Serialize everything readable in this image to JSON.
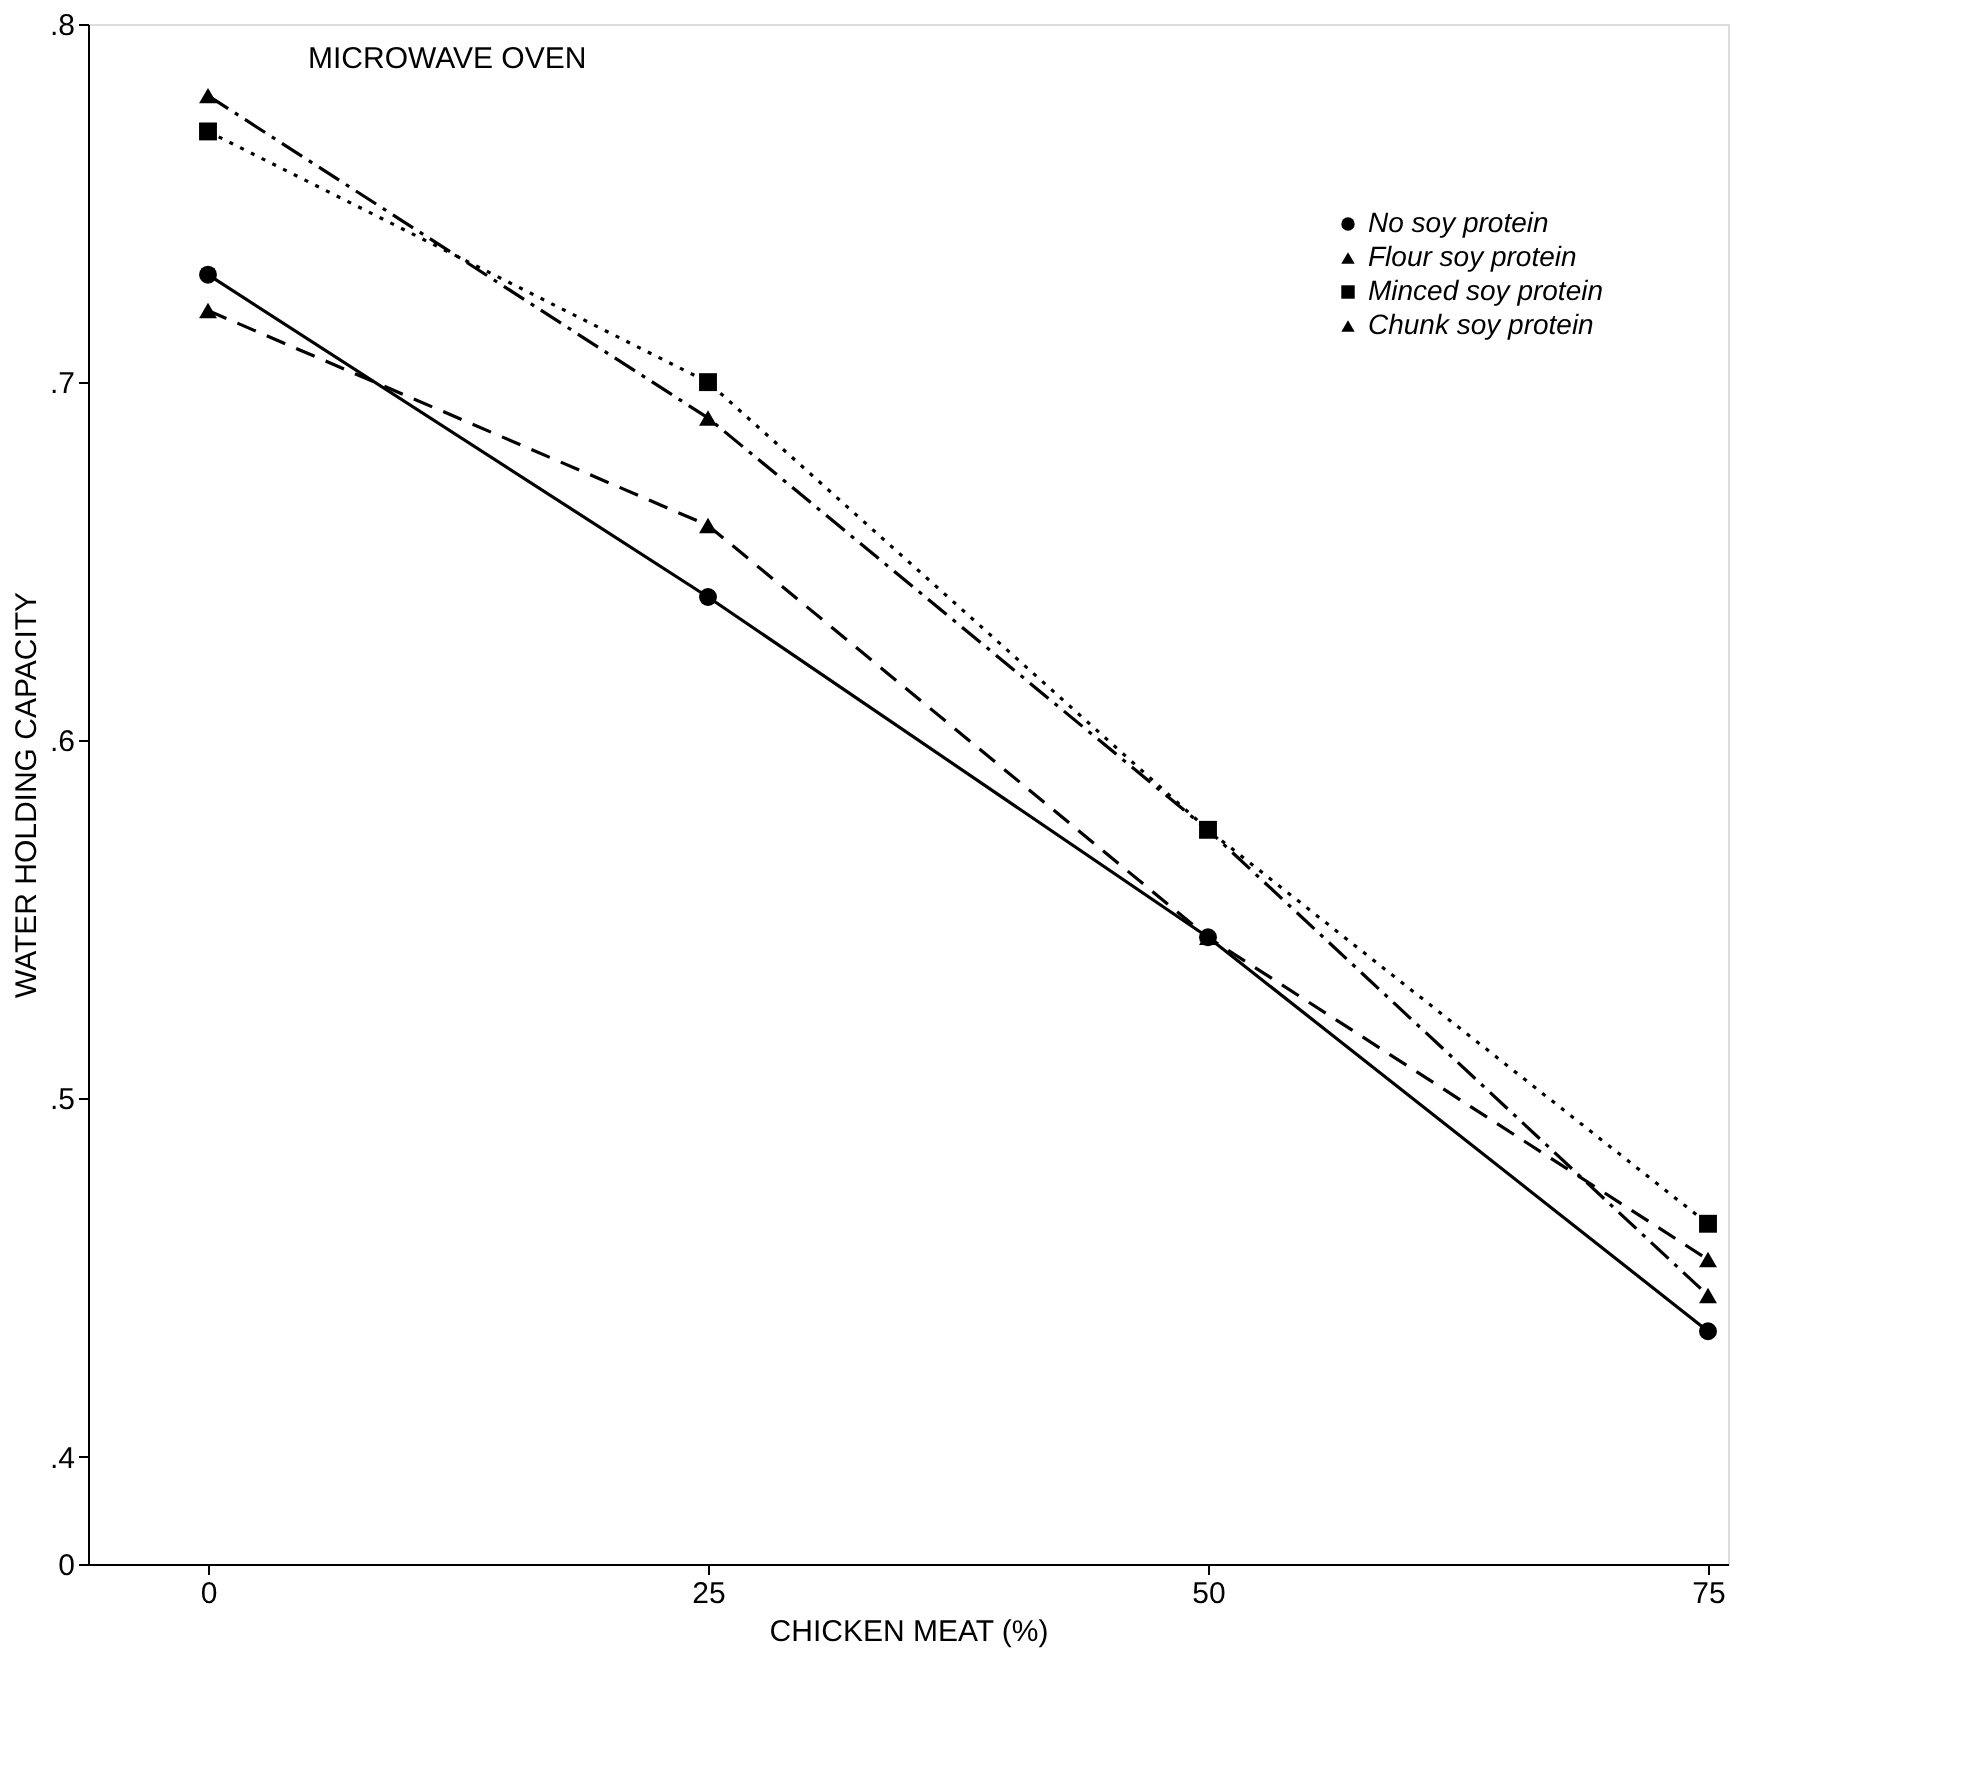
{
  "chart_data": {
    "type": "line",
    "title": "MICROWAVE OVEN",
    "xlabel": "CHICKEN MEAT (%)",
    "ylabel": "WATER HOLDING CAPACITY",
    "x": [
      0,
      25,
      50,
      75
    ],
    "series": [
      {
        "name": "No soy protein",
        "color": "#000000",
        "values": [
          0.73,
          0.64,
          0.545,
          0.435
        ],
        "marker": "circle",
        "line_style": "solid"
      },
      {
        "name": "Flour soy protein",
        "color": "#000000",
        "values": [
          0.78,
          0.69,
          0.575,
          0.445
        ],
        "marker": "triangle",
        "line_style": "dashdot"
      },
      {
        "name": "Minced soy protein",
        "color": "#000000",
        "values": [
          0.77,
          0.7,
          0.575,
          0.465
        ],
        "marker": "square",
        "line_style": "dotted"
      },
      {
        "name": "Chunk soy protein",
        "color": "#000000",
        "values": [
          0.72,
          0.66,
          0.545,
          0.455
        ],
        "marker": "triangle",
        "line_style": "dashed"
      }
    ],
    "xlim": [
      -6,
      76
    ],
    "xticks": [
      0,
      25,
      50,
      75
    ],
    "ylim": [
      0.37,
      0.8
    ],
    "yticks": [
      {
        "value": 0.37,
        "label": "0"
      },
      {
        "value": 0.4,
        "label": ".4"
      },
      {
        "value": 0.5,
        "label": ".5"
      },
      {
        "value": 0.6,
        "label": ".6"
      },
      {
        "value": 0.7,
        "label": ".7"
      },
      {
        "value": 0.8,
        "label": ".8"
      }
    ],
    "grid": false,
    "legend": "top right"
  }
}
